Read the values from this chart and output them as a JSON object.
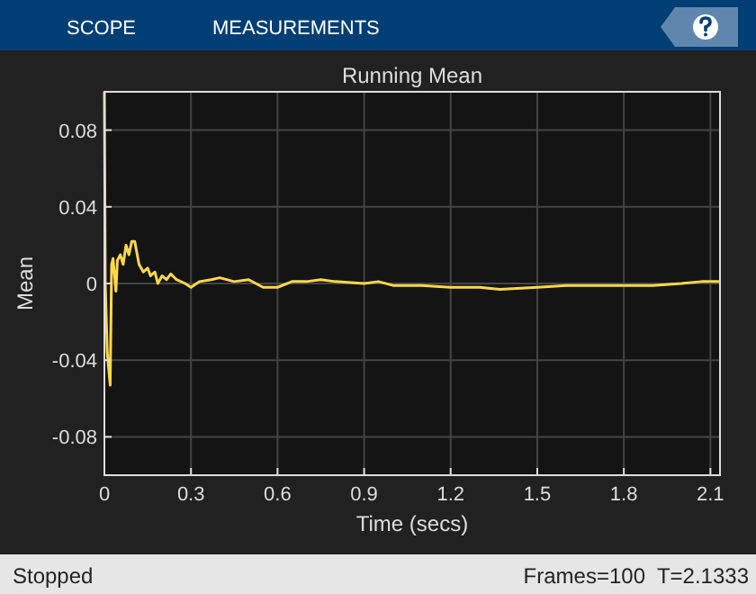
{
  "chart_data": {
    "type": "line",
    "title": "Running Mean",
    "xlabel": "Time (secs)",
    "ylabel": "Mean",
    "x": [
      0,
      0.003,
      0.01,
      0.02,
      0.025,
      0.03,
      0.04,
      0.045,
      0.055,
      0.065,
      0.075,
      0.085,
      0.095,
      0.105,
      0.12,
      0.135,
      0.15,
      0.16,
      0.175,
      0.185,
      0.2,
      0.215,
      0.23,
      0.25,
      0.28,
      0.3,
      0.33,
      0.37,
      0.4,
      0.45,
      0.5,
      0.55,
      0.6,
      0.65,
      0.7,
      0.75,
      0.8,
      0.9,
      0.95,
      1.0,
      1.1,
      1.2,
      1.3,
      1.37,
      1.5,
      1.6,
      1.8,
      1.9,
      2.0,
      2.07,
      2.13
    ],
    "series": [
      {
        "color": "#ffd84a",
        "values": [
          0.1,
          0.0,
          -0.036,
          -0.053,
          0.01,
          0.013,
          -0.004,
          0.012,
          0.015,
          0.01,
          0.02,
          0.015,
          0.022,
          0.022,
          0.01,
          0.006,
          0.008,
          0.004,
          0.006,
          0,
          0.004,
          0.002,
          0.005,
          0.002,
          0,
          -0.002,
          0.001,
          0.002,
          0.003,
          0.001,
          0.002,
          -0.002,
          -0.002,
          0.001,
          0.001,
          0.002,
          0.001,
          0,
          0.001,
          -0.001,
          -0.001,
          -0.002,
          -0.002,
          -0.003,
          -0.002,
          -0.001,
          -0.001,
          -0.001,
          0,
          0.001,
          0.001
        ]
      }
    ],
    "xlim": [
      0,
      2.1333
    ],
    "xticks": [
      0,
      0.3,
      0.6,
      0.9,
      1.2,
      1.5,
      1.8,
      2.1
    ],
    "ylim": [
      -0.1,
      0.1
    ],
    "yticks": [
      -0.08,
      -0.04,
      0,
      0.04,
      0.08
    ],
    "grid": true,
    "marker": "none",
    "line_style": "solid",
    "annotations": [
      "SCOPE",
      "MEASUREMENTS",
      "Stopped",
      "Frames=100  T=2.1333"
    ]
  }
}
